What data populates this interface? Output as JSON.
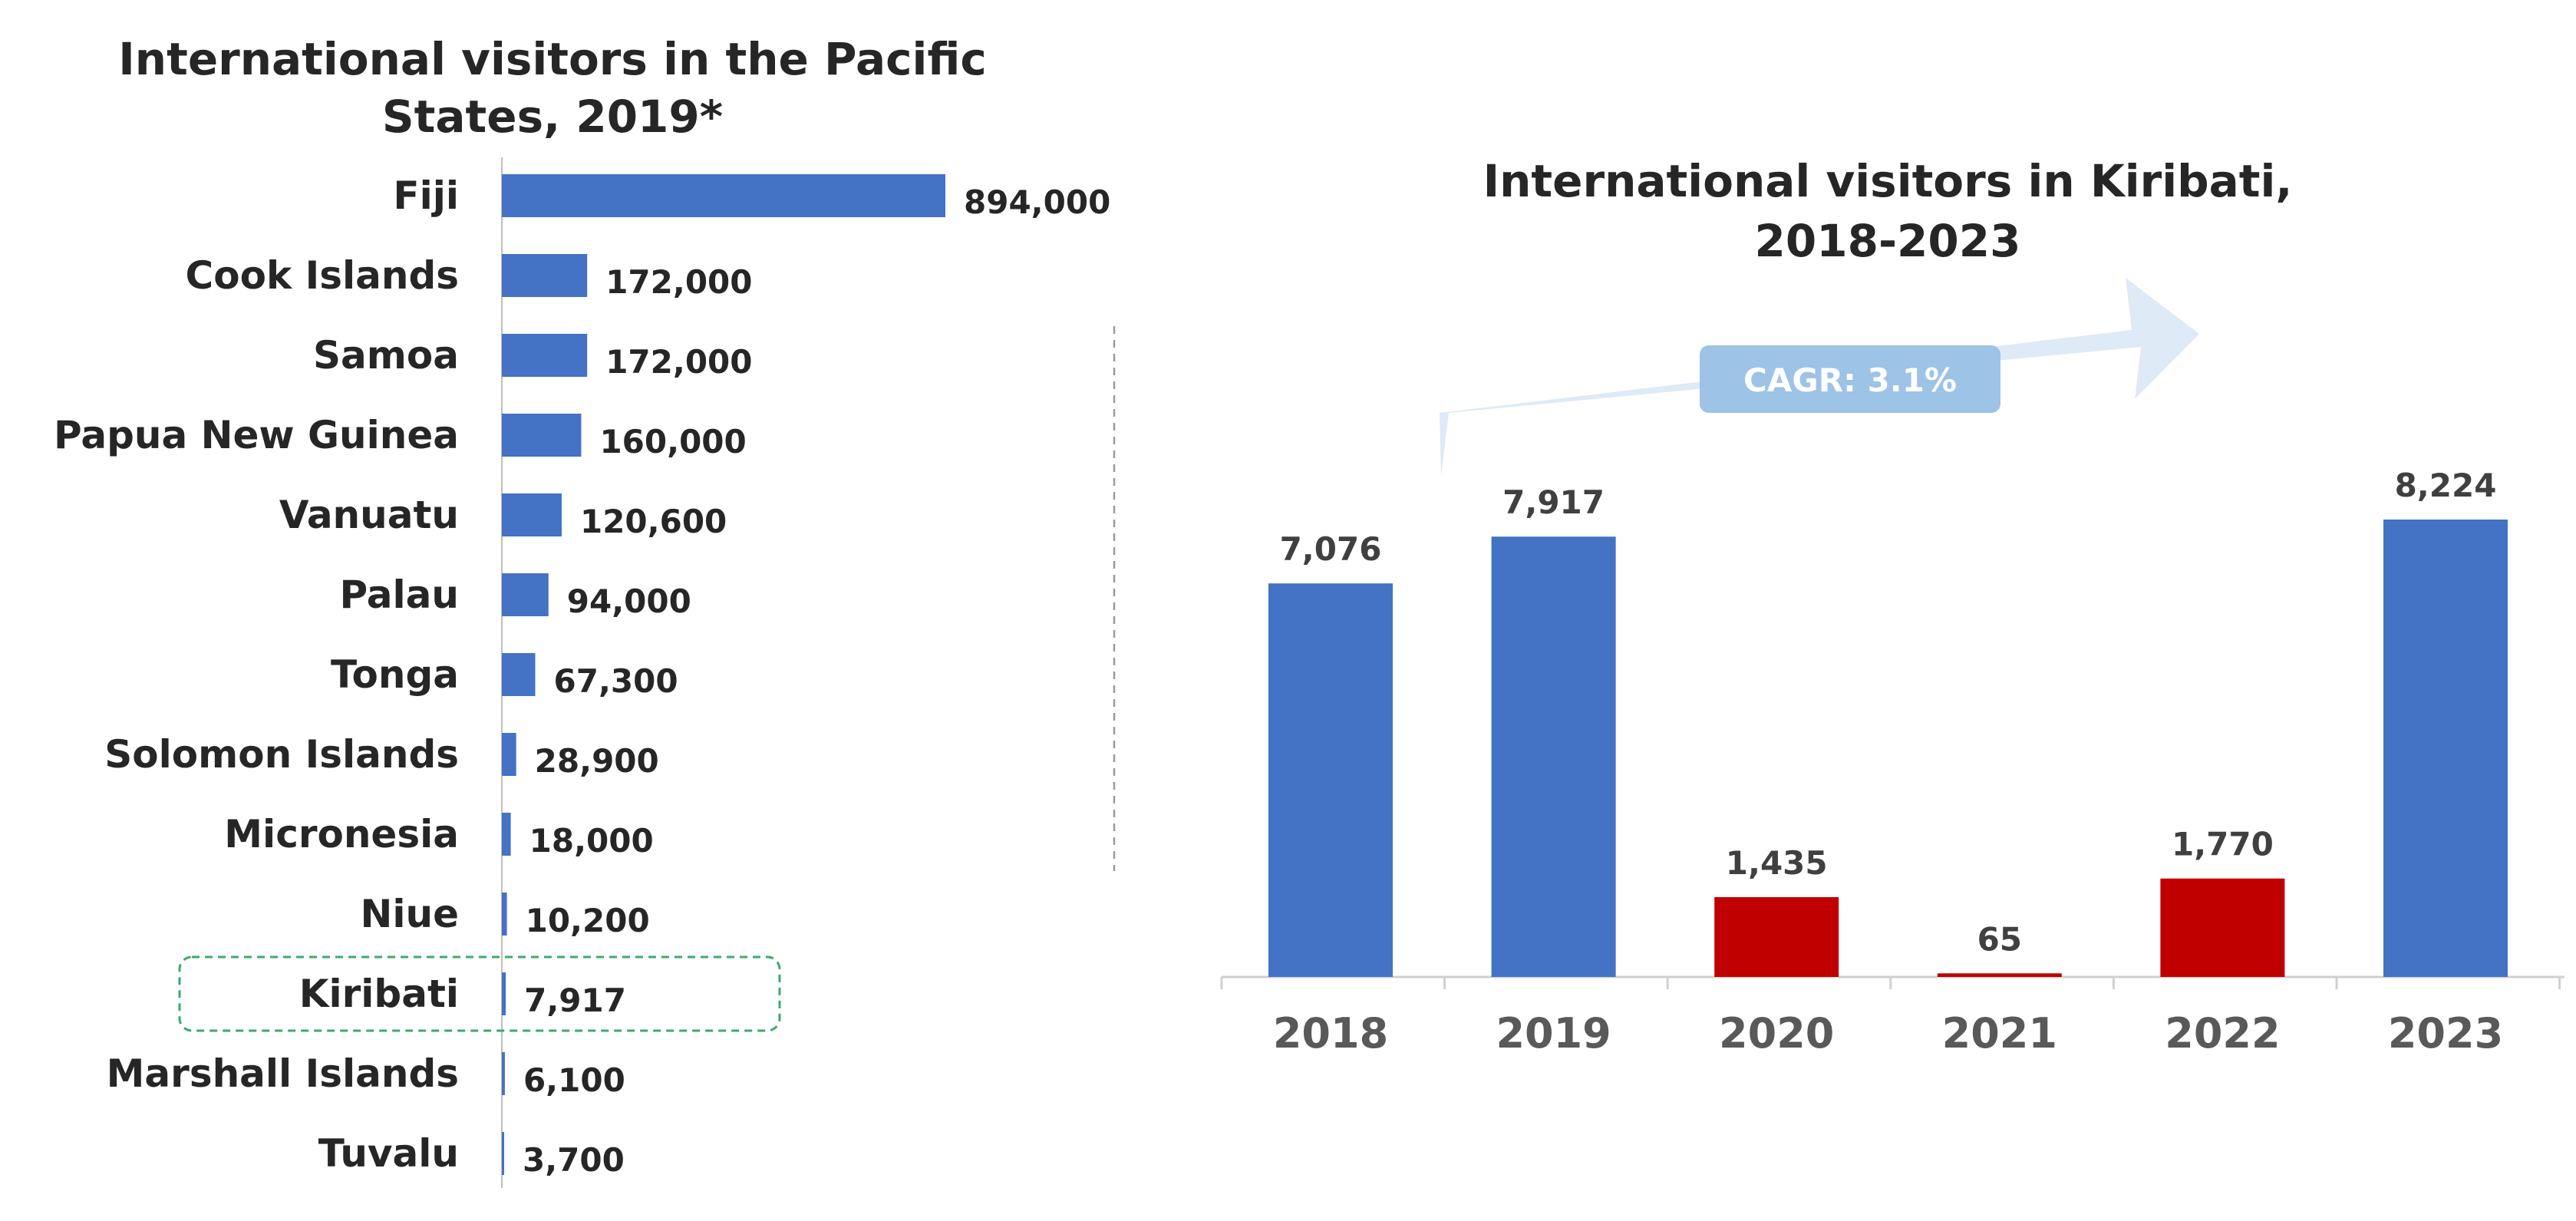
{
  "chart_data": [
    {
      "type": "bar",
      "orientation": "horizontal",
      "title": "International visitors in the Pacific States, 2019*",
      "title_lines": [
        "International visitors in the Pacific",
        "States, 2019*"
      ],
      "categories": [
        "Fiji",
        "Cook Islands",
        "Samoa",
        "Papua New Guinea",
        "Vanuatu",
        "Palau",
        "Tonga",
        "Solomon Islands",
        "Micronesia",
        "Niue",
        "Kiribati",
        "Marshall Islands",
        "Tuvalu"
      ],
      "values": [
        894000,
        172000,
        172000,
        160000,
        120600,
        94000,
        67300,
        28900,
        18000,
        10200,
        7917,
        6100,
        3700
      ],
      "value_labels": [
        "894,000",
        "172,000",
        "172,000",
        "160,000",
        "120,600",
        "94,000",
        "67,300",
        "28,900",
        "18,000",
        "10,200",
        "7,917",
        "6,100",
        "3,700"
      ],
      "highlight": "Kiribati",
      "xlim": [
        0,
        894000
      ],
      "bar_color": "#4472C4",
      "highlight_border_color": "#3DAA6A"
    },
    {
      "type": "bar",
      "title": "International visitors in Kiribati, 2018-2023",
      "title_lines": [
        "International visitors in Kiribati,",
        "2018-2023"
      ],
      "categories": [
        "2018",
        "2019",
        "2020",
        "2021",
        "2022",
        "2023"
      ],
      "values": [
        7076,
        7917,
        1435,
        65,
        1770,
        8224
      ],
      "value_labels": [
        "7,076",
        "7,917",
        "1,435",
        "65",
        "1,770",
        "8,224"
      ],
      "bar_colors": [
        "#4472C4",
        "#4472C4",
        "#C00000",
        "#C00000",
        "#C00000",
        "#4472C4"
      ],
      "ylim": [
        0,
        8224
      ],
      "annotation": "CAGR: 3.1%",
      "arrow_color": "#DEEAF6",
      "annotation_bg": "#9DC3E6"
    }
  ]
}
